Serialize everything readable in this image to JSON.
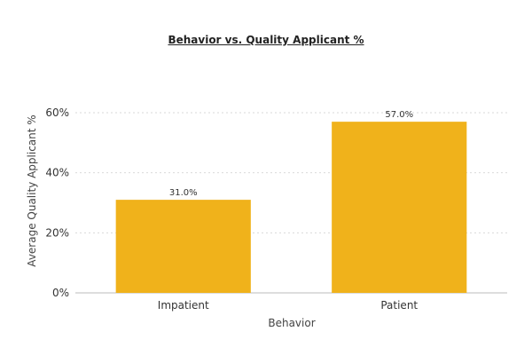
{
  "chart_data": {
    "type": "bar",
    "title": "Behavior vs. Quality Applicant %",
    "xlabel": "Behavior",
    "ylabel": "Average Quality Applicant %",
    "categories": [
      "Impatient",
      "Patient"
    ],
    "values": [
      31.0,
      57.0
    ],
    "data_labels": [
      "31.0%",
      "57.0%"
    ],
    "yticks": [
      0,
      20,
      40,
      60
    ],
    "ytick_labels": [
      "0%",
      "20%",
      "40%",
      "60%"
    ],
    "ylim": [
      0,
      60
    ],
    "grid": true,
    "legend": "none",
    "bar_color": "#F0B21B",
    "grid_color": "#D9D9D9",
    "axis_color": "#BBBBBB"
  }
}
